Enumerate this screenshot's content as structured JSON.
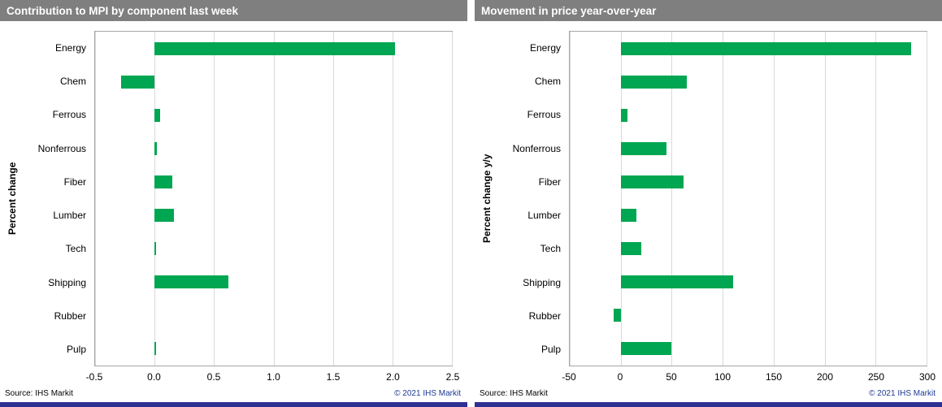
{
  "brand": {
    "bar_green": "#00a651",
    "title_bar_gray": "#7f7f7f",
    "footer_blue": "#2e3192",
    "copyright_blue": "#1b3a94"
  },
  "panels": [
    {
      "source": "Source: IHS Markit",
      "copyright": "© 2021  IHS Markit"
    },
    {
      "source": "Source: IHS Markit",
      "copyright": "© 2021  IHS Markit"
    }
  ],
  "chart_data": [
    {
      "type": "bar",
      "orientation": "horizontal",
      "title": "Contribution to MPI by component last week",
      "ylabel": "Percent change",
      "categories": [
        "Energy",
        "Chem",
        "Ferrous",
        "Nonferrous",
        "Fiber",
        "Lumber",
        "Tech",
        "Shipping",
        "Rubber",
        "Pulp"
      ],
      "values": [
        2.02,
        -0.28,
        0.05,
        0.02,
        0.15,
        0.16,
        0.01,
        0.62,
        0.0,
        0.01
      ],
      "xlim": [
        -0.5,
        2.5
      ],
      "xticks": [
        -0.5,
        0.0,
        0.5,
        1.0,
        1.5,
        2.0,
        2.5
      ],
      "xtick_labels": [
        "-0.5",
        "0.0",
        "0.5",
        "1.0",
        "1.5",
        "2.0",
        "2.5"
      ],
      "grid": true,
      "legend": "none",
      "bar_color": "#00a651"
    },
    {
      "type": "bar",
      "orientation": "horizontal",
      "title": "Movement in price year-over-year",
      "ylabel": "Percent change y/y",
      "categories": [
        "Energy",
        "Chem",
        "Ferrous",
        "Nonferrous",
        "Fiber",
        "Lumber",
        "Tech",
        "Shipping",
        "Rubber",
        "Pulp"
      ],
      "values": [
        285,
        65,
        7,
        45,
        62,
        15,
        20,
        110,
        -7,
        50
      ],
      "xlim": [
        -50,
        300
      ],
      "xticks": [
        -50,
        0,
        50,
        100,
        150,
        200,
        250,
        300
      ],
      "xtick_labels": [
        "-50",
        "0",
        "50",
        "100",
        "150",
        "200",
        "250",
        "300"
      ],
      "grid": true,
      "legend": "none",
      "bar_color": "#00a651"
    }
  ]
}
